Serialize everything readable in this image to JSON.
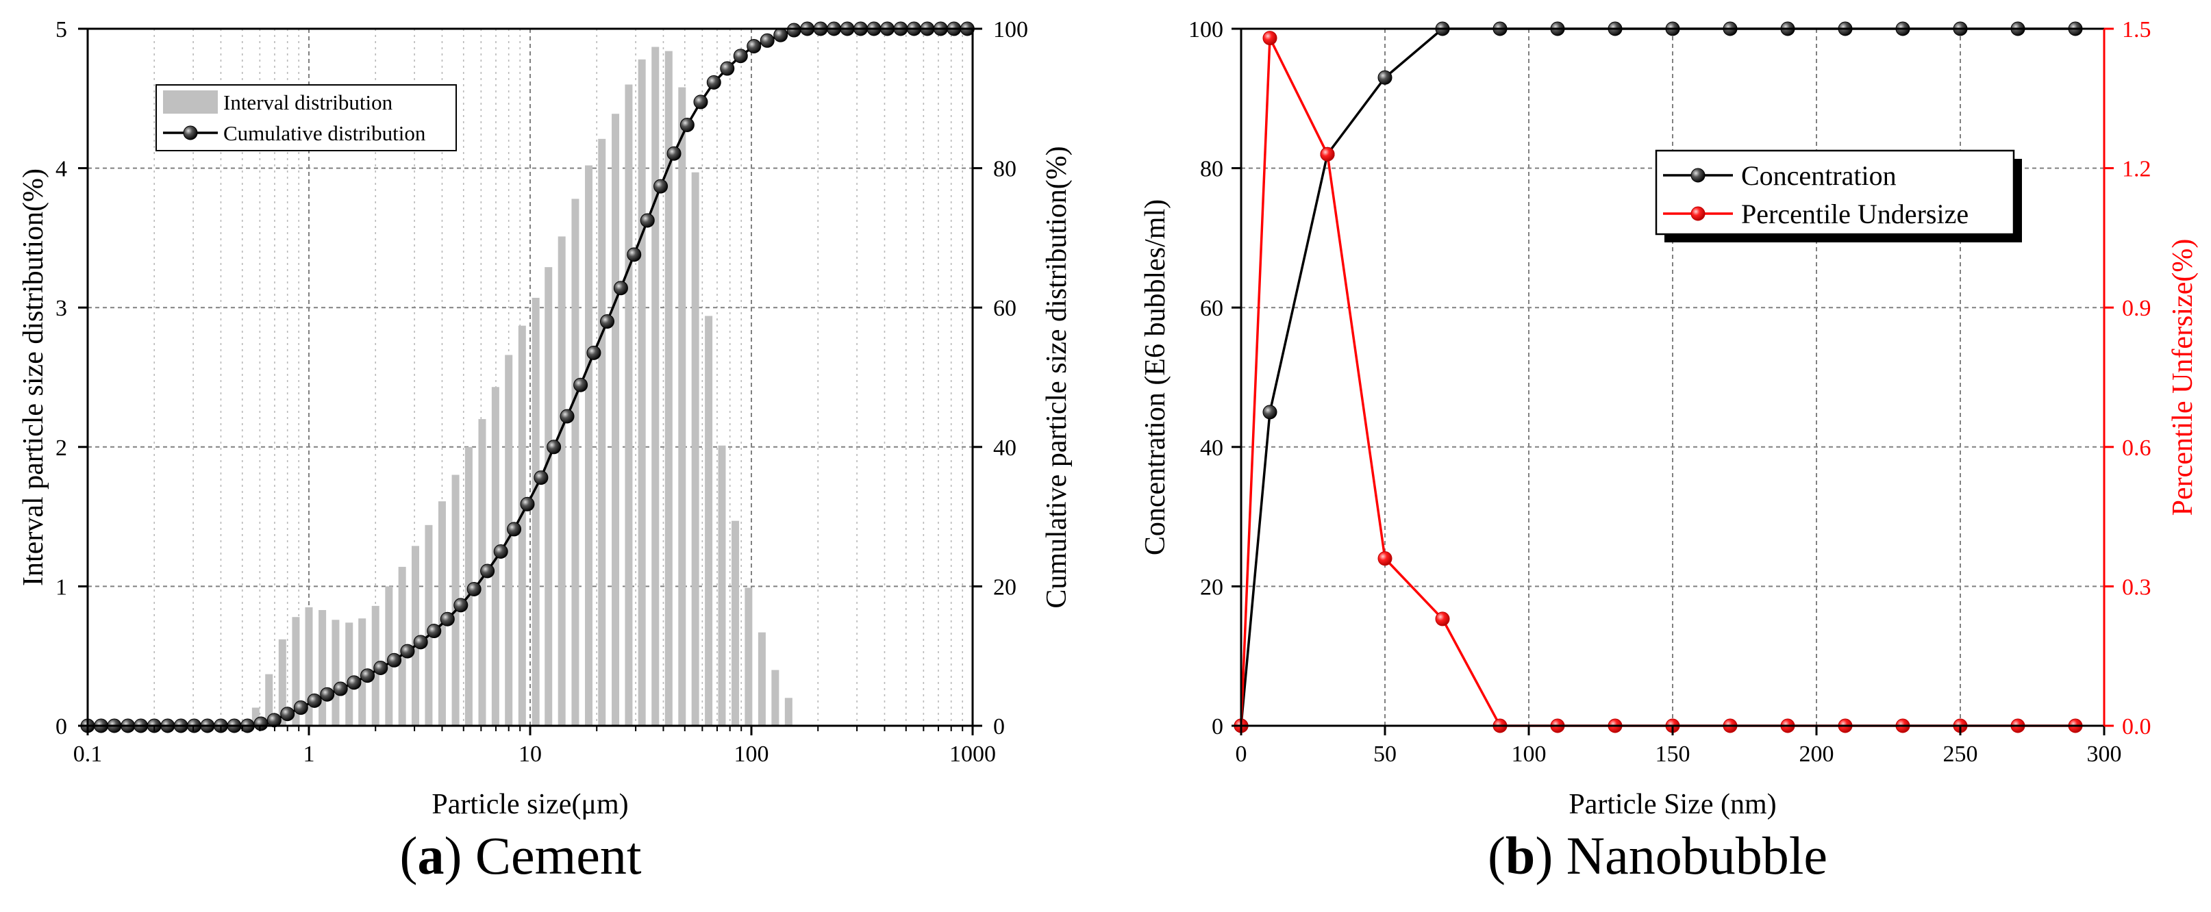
{
  "captions": [
    {
      "label": "a",
      "title": "Cement"
    },
    {
      "label": "b",
      "title": "Nanobubble"
    }
  ],
  "chart_data": [
    {
      "type": "bar",
      "panel": "a",
      "xscale": "log",
      "xlim": [
        0.1,
        1000
      ],
      "xticks": [
        0.1,
        1,
        10,
        100,
        1000
      ],
      "xtick_labels": [
        "0.1",
        "1",
        "10",
        "100",
        "1000"
      ],
      "xlabel": "Particle size(μm)",
      "ylabel": "Interval particle size distribution(%)",
      "ylim": [
        0,
        5
      ],
      "yticks": [
        0,
        1,
        2,
        3,
        4,
        5
      ],
      "y2label": "Cumulative particle size distribution(%)",
      "y2lim": [
        0,
        100
      ],
      "y2ticks": [
        0,
        20,
        40,
        60,
        80,
        100
      ],
      "legend_position": "top-left",
      "grid": true,
      "series": [
        {
          "name": "Interval distribution",
          "kind": "bar",
          "color": "#c0c0c0",
          "axis": "left",
          "x": [
            0.575,
            0.66,
            0.759,
            0.873,
            1.0,
            1.15,
            1.32,
            1.52,
            1.74,
            2.0,
            2.3,
            2.64,
            3.03,
            3.48,
            4.0,
            4.6,
            5.28,
            6.07,
            6.97,
            8.0,
            9.2,
            10.6,
            12.1,
            13.9,
            16.0,
            18.4,
            21.1,
            24.3,
            27.9,
            32.0,
            36.8,
            42.3,
            48.6,
            55.8,
            64.1,
            73.6,
            84.6,
            97.1,
            111.6,
            128.2,
            147.3
          ],
          "values": [
            0.13,
            0.37,
            0.62,
            0.78,
            0.85,
            0.83,
            0.76,
            0.74,
            0.77,
            0.86,
            1.0,
            1.14,
            1.29,
            1.44,
            1.61,
            1.8,
            2.0,
            2.2,
            2.43,
            2.66,
            2.87,
            3.07,
            3.29,
            3.51,
            3.78,
            4.02,
            4.21,
            4.39,
            4.6,
            4.78,
            4.87,
            4.84,
            4.58,
            3.97,
            2.94,
            2.01,
            1.47,
            0.99,
            0.67,
            0.4,
            0.2
          ]
        },
        {
          "name": "Cumulative distribution",
          "kind": "line",
          "color": "#000000",
          "axis": "right",
          "x": [
            0.1,
            0.115,
            0.132,
            0.152,
            0.174,
            0.2,
            0.23,
            0.264,
            0.303,
            0.348,
            0.4,
            0.46,
            0.528,
            0.607,
            0.697,
            0.8,
            0.92,
            1.06,
            1.21,
            1.39,
            1.6,
            1.84,
            2.11,
            2.43,
            2.79,
            3.2,
            3.68,
            4.23,
            4.86,
            5.58,
            6.41,
            7.37,
            8.46,
            9.72,
            11.2,
            12.8,
            14.7,
            16.9,
            19.4,
            22.3,
            25.7,
            29.5,
            33.9,
            38.9,
            44.7,
            51.3,
            59.0,
            67.7,
            77.8,
            89.4,
            102.7,
            118.0,
            135.6,
            155.8,
            179.0,
            205.6,
            236.3,
            271.5,
            311.9,
            358.3,
            411.7,
            473.0,
            543.4,
            624.3,
            717.3,
            824.1,
            946.8
          ],
          "values": [
            0,
            0,
            0,
            0,
            0,
            0,
            0,
            0,
            0,
            0,
            0,
            0,
            0,
            0.3,
            0.8,
            1.7,
            2.6,
            3.6,
            4.5,
            5.3,
            6.2,
            7.2,
            8.3,
            9.4,
            10.7,
            12.0,
            13.6,
            15.3,
            17.3,
            19.6,
            22.2,
            25.0,
            28.2,
            31.8,
            35.6,
            40.0,
            44.4,
            48.9,
            53.5,
            58.0,
            62.8,
            67.6,
            72.5,
            77.4,
            82.1,
            86.2,
            89.5,
            92.3,
            94.3,
            96.1,
            97.5,
            98.3,
            99.1,
            99.8,
            100,
            100,
            100,
            100,
            100,
            100,
            100,
            100,
            100,
            100,
            100,
            100,
            100
          ]
        }
      ]
    },
    {
      "type": "line",
      "panel": "b",
      "xlabel": "Particle Size (nm)",
      "xlim": [
        0,
        300
      ],
      "xticks": [
        0,
        50,
        100,
        150,
        200,
        250,
        300
      ],
      "ylabel": "Concentration (E6 bubbles/ml)",
      "ylim": [
        0,
        100
      ],
      "yticks": [
        0,
        20,
        40,
        60,
        80,
        100
      ],
      "y2label": "Percentile Unfersize(%)",
      "y2lim": [
        0,
        1.5
      ],
      "y2ticks": [
        0.0,
        0.3,
        0.6,
        0.9,
        1.2,
        1.5
      ],
      "y2tick_labels": [
        "0.0",
        "0.3",
        "0.6",
        "0.9",
        "1.2",
        "1.5"
      ],
      "legend_position": "top-right",
      "grid": true,
      "x": [
        0,
        10,
        30,
        50,
        70,
        90,
        110,
        130,
        150,
        170,
        190,
        210,
        230,
        250,
        270,
        290
      ],
      "series": [
        {
          "name": "Concentration",
          "color": "#000000",
          "axis": "left",
          "values": [
            0,
            45,
            82,
            93,
            100,
            100,
            100,
            100,
            100,
            100,
            100,
            100,
            100,
            100,
            100,
            100
          ]
        },
        {
          "name": "Percentile Undersize",
          "color": "#ff0000",
          "axis": "right",
          "values": [
            0,
            1.48,
            1.23,
            0.36,
            0.23,
            0,
            0,
            0,
            0,
            0,
            0,
            0,
            0,
            0,
            0,
            0
          ]
        }
      ]
    }
  ]
}
